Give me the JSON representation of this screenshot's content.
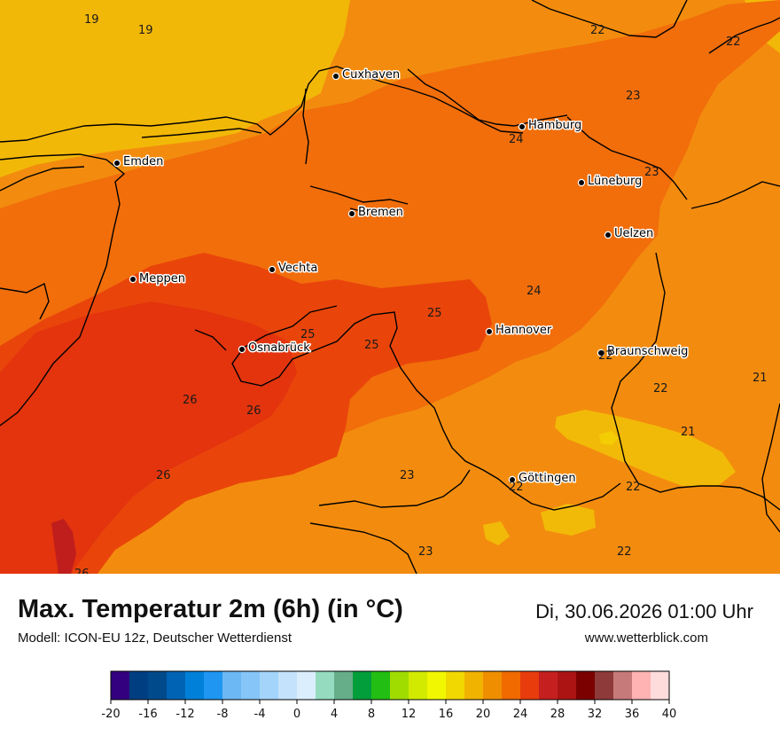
{
  "header": {
    "title": "Max. Temperatur 2m (6h) (in °C)",
    "subtitle": "Modell: ICON-EU 12z, Deutscher Wetterdienst",
    "datetime": "Di, 30.06.2026 01:00 Uhr",
    "website": "www.wetterblick.com"
  },
  "cities": [
    {
      "name": "Cuxhaven"
    },
    {
      "name": "Hamburg"
    },
    {
      "name": "Emden"
    },
    {
      "name": "Lüneburg"
    },
    {
      "name": "Bremen"
    },
    {
      "name": "Uelzen"
    },
    {
      "name": "Vechta"
    },
    {
      "name": "Meppen"
    },
    {
      "name": "Hannover"
    },
    {
      "name": "Osnabrück"
    },
    {
      "name": "Braunschweig"
    },
    {
      "name": "Göttingen"
    }
  ],
  "value_labels": [
    "19",
    "19",
    "22",
    "22",
    "23",
    "24",
    "23",
    "24",
    "25",
    "25",
    "25",
    "26",
    "26",
    "26",
    "22",
    "21",
    "22",
    "21",
    "23",
    "22",
    "22",
    "23",
    "22",
    "26"
  ],
  "colorbar": {
    "min": -20,
    "max": 40,
    "step": 2,
    "ticks": [
      "-20",
      "-16",
      "-12",
      "-8",
      "-4",
      "0",
      "4",
      "8",
      "12",
      "16",
      "20",
      "24",
      "28",
      "32",
      "36",
      "40"
    ],
    "colors": [
      "#33007f",
      "#003e82",
      "#004a8b",
      "#0063b4",
      "#0080d9",
      "#1e96f2",
      "#6cb8f4",
      "#86c5f7",
      "#a4d4fa",
      "#c4e2fb",
      "#dbeefe",
      "#95dbc0",
      "#66ae8a",
      "#029e3b",
      "#23be13",
      "#a1dc00",
      "#d1ea00",
      "#f1f700",
      "#f1d800",
      "#f0b300",
      "#ef8f00",
      "#f06a00",
      "#e83c0d",
      "#c51f1f",
      "#ac1414",
      "#7b0000",
      "#8f3a3a",
      "#c77a7a",
      "#ffb3b3",
      "#ffdcdc"
    ]
  }
}
